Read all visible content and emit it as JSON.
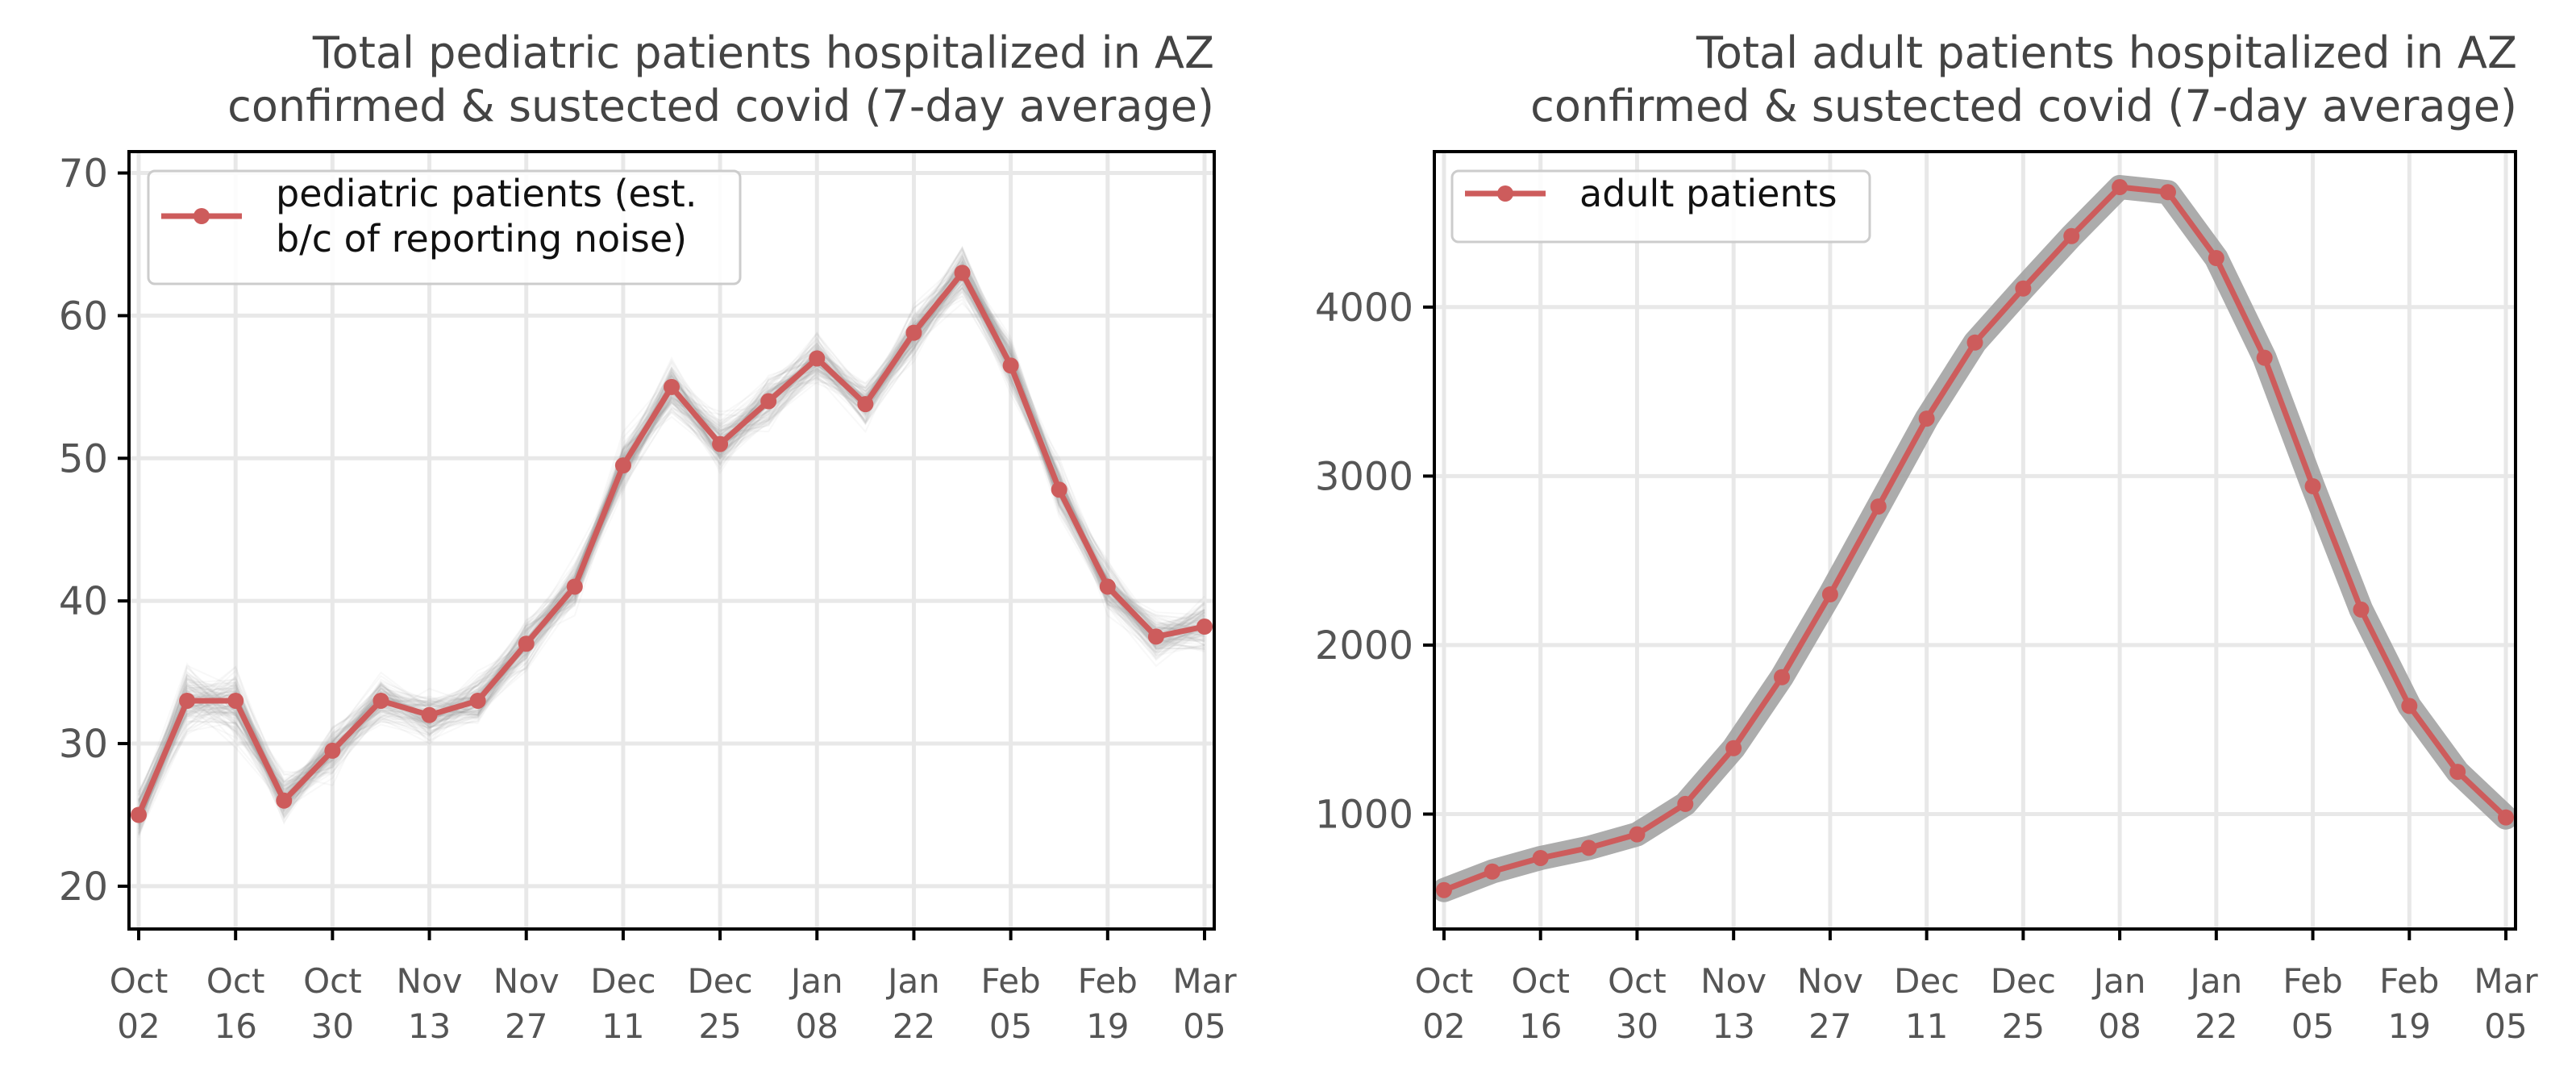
{
  "chart_data": [
    {
      "type": "line",
      "title_lines": [
        "Total pediatric patients hospitalized in AZ",
        "confirmed & sustected covid (7-day average)"
      ],
      "xlabel": "",
      "ylabel": "",
      "ylim": [
        17,
        71.5
      ],
      "yticks": [
        20,
        30,
        40,
        50,
        60,
        70
      ],
      "xlim": [
        -0.2,
        22.2
      ],
      "xtick_positions": [
        0,
        2,
        4,
        6,
        8,
        10,
        12,
        14,
        16,
        18,
        20,
        22
      ],
      "xtick_labels": [
        [
          "Oct",
          "02"
        ],
        [
          "Oct",
          "16"
        ],
        [
          "Oct",
          "30"
        ],
        [
          "Nov",
          "13"
        ],
        [
          "Nov",
          "27"
        ],
        [
          "Dec",
          "11"
        ],
        [
          "Dec",
          "25"
        ],
        [
          "Jan",
          "08"
        ],
        [
          "Jan",
          "22"
        ],
        [
          "Feb",
          "05"
        ],
        [
          "Feb",
          "19"
        ],
        [
          "Mar",
          "05"
        ]
      ],
      "grid": true,
      "legend_position": "top-left",
      "legend_lines": [
        "pediatric patients (est.",
        "b/c of reporting noise)"
      ],
      "series": [
        {
          "name": "pediatric patients (est. b/c of reporting noise)",
          "color": "#cd5c5c",
          "values": [
            25,
            33,
            33,
            26,
            29.5,
            33,
            32,
            33,
            37,
            41,
            49.5,
            55,
            51,
            54,
            57,
            53.8,
            58.8,
            63,
            56.5,
            47.8,
            41,
            37.5,
            38.2
          ]
        }
      ],
      "uncertainty_band": {
        "color": "#9e9e9e",
        "description": "many faint gray simulated traces"
      }
    },
    {
      "type": "line",
      "title_lines": [
        "Total adult patients hospitalized in AZ",
        "confirmed & sustected covid (7-day average)"
      ],
      "xlabel": "",
      "ylabel": "",
      "ylim": [
        320,
        4920
      ],
      "yticks": [
        1000,
        2000,
        3000,
        4000
      ],
      "xlim": [
        -0.2,
        22.2
      ],
      "xtick_positions": [
        0,
        2,
        4,
        6,
        8,
        10,
        12,
        14,
        16,
        18,
        20,
        22
      ],
      "xtick_labels": [
        [
          "Oct",
          "02"
        ],
        [
          "Oct",
          "16"
        ],
        [
          "Oct",
          "30"
        ],
        [
          "Nov",
          "13"
        ],
        [
          "Nov",
          "27"
        ],
        [
          "Dec",
          "11"
        ],
        [
          "Dec",
          "25"
        ],
        [
          "Jan",
          "08"
        ],
        [
          "Jan",
          "22"
        ],
        [
          "Feb",
          "05"
        ],
        [
          "Feb",
          "19"
        ],
        [
          "Mar",
          "05"
        ]
      ],
      "grid": true,
      "legend_position": "top-left",
      "legend_lines": [
        "adult patients"
      ],
      "series": [
        {
          "name": "adult patients",
          "color": "#cd5c5c",
          "values": [
            550,
            660,
            740,
            800,
            880,
            1060,
            1390,
            1810,
            2300,
            2820,
            3340,
            3790,
            4110,
            4420,
            4710,
            4680,
            4290,
            3700,
            2940,
            2210,
            1640,
            1250,
            980
          ]
        }
      ],
      "uncertainty_band": {
        "color": "#9e9e9e",
        "description": "gray band around adult series"
      }
    }
  ]
}
